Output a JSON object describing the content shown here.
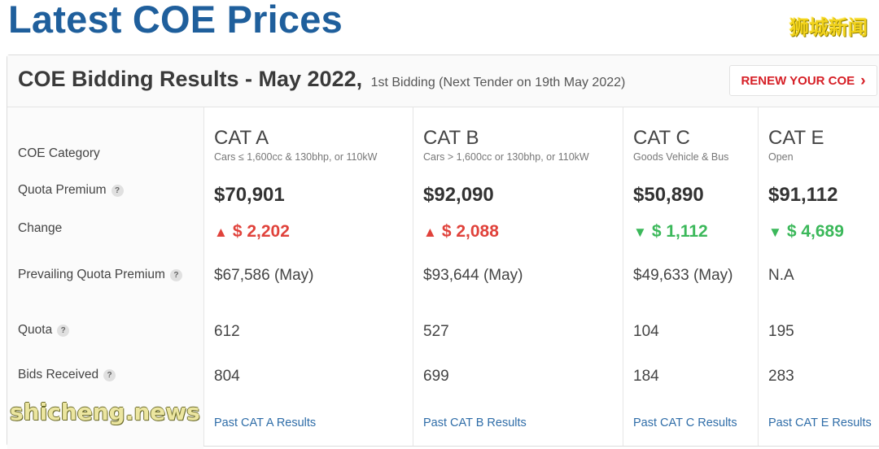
{
  "page": {
    "title": "Latest COE Prices"
  },
  "watermarks": {
    "top_right": "狮城新闻",
    "bottom_left": "shicheng.news"
  },
  "card": {
    "title": "COE Bidding Results - May 2022,",
    "subtitle": "1st Bidding (Next Tender on 19th May 2022)",
    "renew_button": "RENEW YOUR COE",
    "renew_chevron": "chevron-right-icon"
  },
  "row_labels": {
    "category": "COE Category",
    "quota_premium": "Quota Premium",
    "change": "Change",
    "prevailing": "Prevailing Quota Premium",
    "quota": "Quota",
    "bids": "Bids Received"
  },
  "help_glyph": "?",
  "categories": [
    {
      "name": "CAT A",
      "desc": "Cars ≤ 1,600cc & 130bhp, or 110kW",
      "premium": "$70,901",
      "direction": "up",
      "arrow": "▲",
      "change": "$ 2,202",
      "prevailing": "$67,586 (May)",
      "quota": "612",
      "bids": "804",
      "link": "Past CAT A Results"
    },
    {
      "name": "CAT B",
      "desc": "Cars > 1,600cc or 130bhp, or 110kW",
      "premium": "$92,090",
      "direction": "up",
      "arrow": "▲",
      "change": "$ 2,088",
      "prevailing": "$93,644 (May)",
      "quota": "527",
      "bids": "699",
      "link": "Past CAT B Results"
    },
    {
      "name": "CAT C",
      "desc": "Goods Vehicle & Bus",
      "premium": "$50,890",
      "direction": "down",
      "arrow": "▼",
      "change": "$ 1,112",
      "prevailing": "$49,633 (May)",
      "quota": "104",
      "bids": "184",
      "link": "Past CAT C Results"
    },
    {
      "name": "CAT E",
      "desc": "Open",
      "premium": "$91,112",
      "direction": "down",
      "arrow": "▼",
      "change": "$ 4,689",
      "prevailing": "N.A",
      "quota": "195",
      "bids": "283",
      "link": "Past CAT E Results"
    }
  ],
  "colors": {
    "title_blue": "#1f5f9c",
    "up_red": "#e0423b",
    "down_green": "#3bb85a",
    "link_blue": "#2f6da8",
    "renew_red": "#d61f26"
  }
}
